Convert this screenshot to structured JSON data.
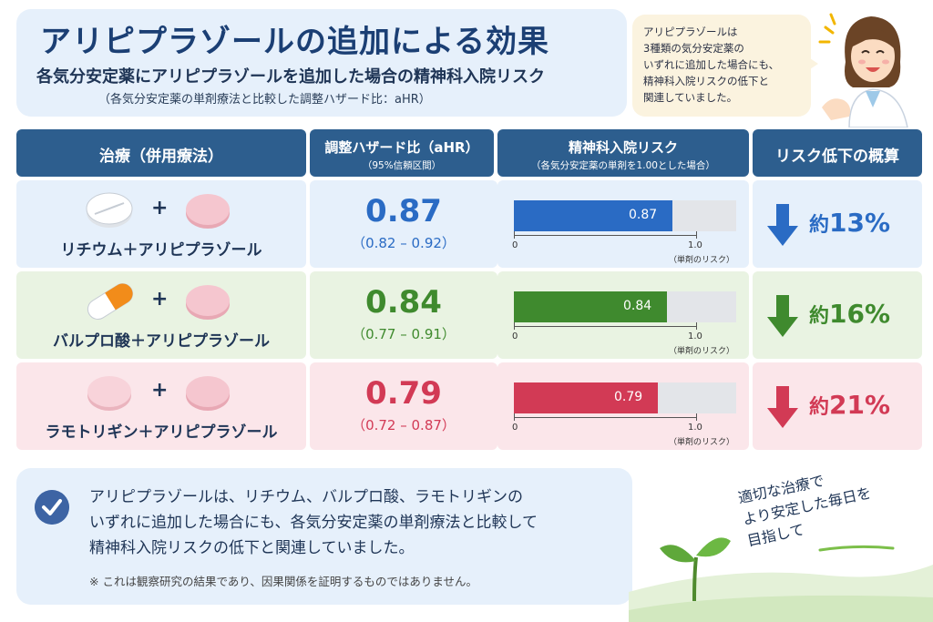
{
  "header": {
    "title": "アリピプラゾールの追加による効果",
    "subtitle": "各気分安定薬にアリピプラゾールを追加した場合の精神科入院リスク",
    "subnote": "（各気分安定薬の単剤療法と比較した調整ハザード比：aHR）"
  },
  "bubble": {
    "lines": [
      "アリピプラゾールは",
      "3種類の気分安定薬の",
      "いずれに追加した場合にも、",
      "精神科入院リスクの低下と",
      "関連していました。"
    ]
  },
  "table": {
    "headers": {
      "treatment": "治療（併用療法）",
      "ahr": "調整ハザード比（aHR）",
      "ahr_sub": "（95%信頼区間）",
      "risk": "精神科入院リスク",
      "risk_sub": "（各気分安定薬の単剤を1.00とした場合）",
      "reduction": "リスク低下の概算"
    },
    "axis": {
      "zero": "0",
      "one": "1.0",
      "note": "（単剤のリスク）"
    },
    "plus": "+",
    "rows": [
      {
        "label": "リチウム＋アリピプラゾール",
        "value": "0.87",
        "ci": "（0.82 – 0.92）",
        "ratio": 0.87,
        "prefix": "約",
        "reduction": "13%",
        "color": "#2a6bc4"
      },
      {
        "label": "バルプロ酸＋アリピプラゾール",
        "value": "0.84",
        "ci": "（0.77 – 0.91）",
        "ratio": 0.84,
        "prefix": "約",
        "reduction": "16%",
        "color": "#3f8a2e"
      },
      {
        "label": "ラモトリギン＋アリピプラゾール",
        "value": "0.79",
        "ci": "（0.72 – 0.87）",
        "ratio": 0.79,
        "prefix": "約",
        "reduction": "21%",
        "color": "#d23a55"
      }
    ]
  },
  "summary": {
    "lines": [
      "アリピプラゾールは、リチウム、バルプロ酸、ラモトリギンの",
      "いずれに追加した場合にも、各気分安定薬の単剤療法と比較して",
      "精神科入院リスクの低下と関連していました。"
    ],
    "note": "※ これは観察研究の結果であり、因果関係を証明するものではありません。"
  },
  "message": {
    "lines": [
      "適切な治療で",
      "より安定した毎日を",
      "目指して"
    ]
  }
}
